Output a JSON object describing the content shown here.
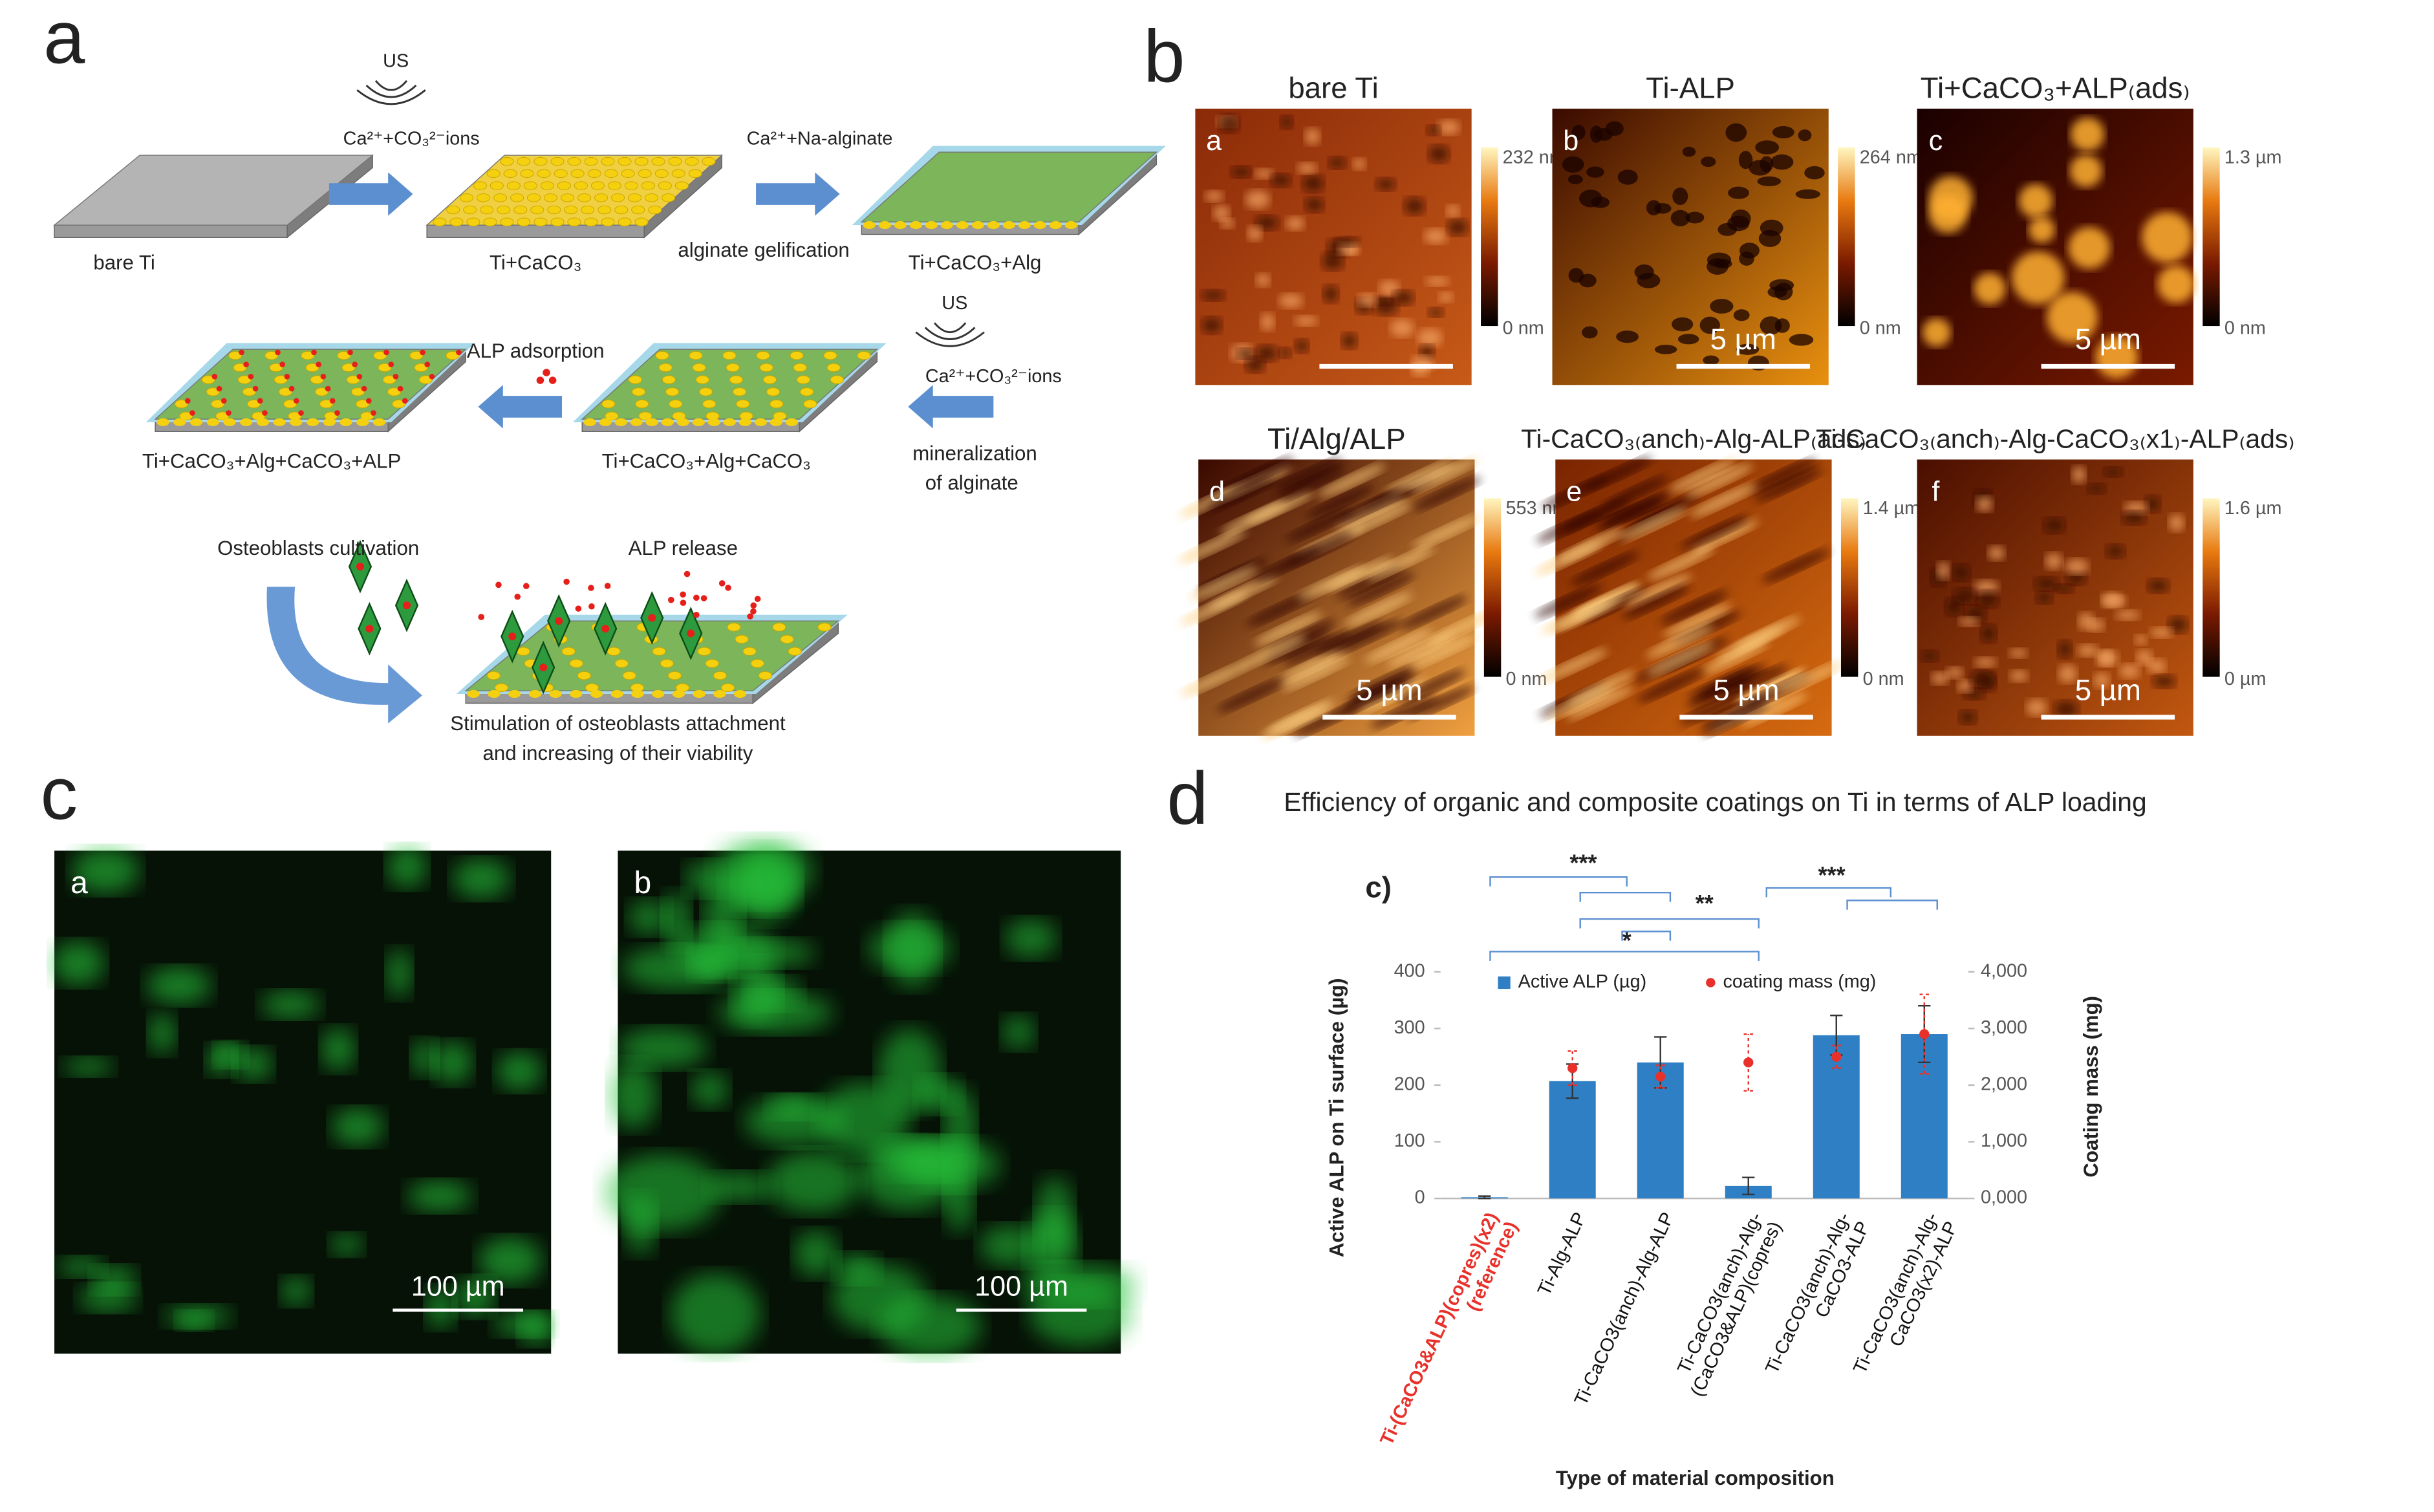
{
  "panel_a": {
    "label": "a",
    "us_1": "US",
    "ions_1": "Ca²⁺+CO₃²⁻ions",
    "na_alginate": "Ca²⁺+Na-alginate",
    "bare_ti": "bare Ti",
    "ti_caco3": "Ti+CaCO₃",
    "gelification": "alginate gelification",
    "ti_caco3_alg": "Ti+CaCO₃+Alg",
    "us_2": "US",
    "ions_2": "Ca²⁺+CO₃²⁻ions",
    "mineralization_1": "mineralization",
    "mineralization_2": "of alginate",
    "alp_adsorption": "ALP adsorption",
    "ti_full_alp": "Ti+CaCO₃+Alg+CaCO₃+ALP",
    "ti_full": "Ti+CaCO₃+Alg+CaCO₃",
    "cultivation": "Osteoblasts cultivation",
    "alp_release": "ALP release",
    "stimulation_1": "Stimulation of osteoblasts attachment",
    "stimulation_2": "and increasing of their viability"
  },
  "panel_b": {
    "label": "b",
    "images": [
      {
        "label": "a",
        "title": "bare Ti",
        "scale_max": "232 nm",
        "scale_min": "0 nm"
      },
      {
        "label": "b",
        "title": "Ti-ALP",
        "scale_max": "264 nm",
        "scale_min": "0 nm",
        "scale_bar": "5 µm"
      },
      {
        "label": "c",
        "title": "Ti+CaCO₃+ALP₍ads₎",
        "scale_max": "1.3 µm",
        "scale_min": "0 nm",
        "scale_bar": "5 µm"
      },
      {
        "label": "d",
        "title": "Ti/Alg/ALP",
        "scale_max": "553 nm",
        "scale_min": "0 nm",
        "scale_bar": "5 µm"
      },
      {
        "label": "e",
        "title": "Ti-CaCO₃₍anch₎-Alg-ALP₍ads₎",
        "scale_max": "1.4 µm",
        "scale_min": "0 nm",
        "scale_bar": "5 µm"
      },
      {
        "label": "f",
        "title": "Ti-CaCO₃₍anch₎-Alg-CaCO₃₍x1₎-ALP₍ads₎",
        "scale_max": "1.6 µm",
        "scale_min": "0 µm",
        "scale_bar": "5 µm"
      }
    ]
  },
  "panel_c": {
    "label": "c",
    "images": [
      {
        "label": "a",
        "scale_bar": "100 µm"
      },
      {
        "label": "b",
        "scale_bar": "100 µm"
      }
    ]
  },
  "chart_data": {
    "type": "bar",
    "panel_label": "d",
    "title": "Efficiency of organic and composite coatings on Ti in terms of ALP loading",
    "subtitle": "c)",
    "categories": [
      "Ti-(CaCO3&ALP)(copres)(x2)\n(reference)",
      "Ti-Alg-ALP",
      "Ti-CaCO3(anch)-Alg-ALP",
      "Ti-CaCO3(anch)-Alg-\n(CaCO3&ALP)(copres)",
      "Ti-CaCO3(anch)-Alg-\nCaCO3-ALP",
      "Ti-CaCO3(anch)-Alg-\nCaCO3(x2)-ALP"
    ],
    "category_colors": [
      "#e8312a",
      "#111111",
      "#111111",
      "#111111",
      "#111111",
      "#111111"
    ],
    "series": [
      {
        "name": "Active ALP (µg)",
        "color": "#2e7fc4",
        "values": [
          2,
          207,
          240,
          22,
          288,
          290
        ],
        "errors": [
          2,
          30,
          45,
          15,
          35,
          50
        ]
      },
      {
        "name": "coating mass (mg)",
        "color": "#e8312a",
        "axis": "y2",
        "values": [
          null,
          2300,
          2150,
          2400,
          2500,
          2900
        ],
        "errors": [
          null,
          300,
          200,
          500,
          200,
          700
        ]
      }
    ],
    "ylim": [
      0,
      400
    ],
    "yticks": [
      0,
      100,
      200,
      300,
      400
    ],
    "y2lim": [
      0,
      4000
    ],
    "y2ticks": [
      {
        "value": 0,
        "label": "0,000"
      },
      {
        "value": 1000,
        "label": "1,000"
      },
      {
        "value": 2000,
        "label": "2,000"
      },
      {
        "value": 3000,
        "label": "3,000"
      },
      {
        "value": 4000,
        "label": "4,000"
      }
    ],
    "y_label": "Active ALP on Ti surface (µg)",
    "y2_label": "Coating mass (mg)",
    "x_label": "Type of material composition",
    "annotations": [
      "***",
      "**",
      "*",
      "***"
    ],
    "legend": "top"
  }
}
